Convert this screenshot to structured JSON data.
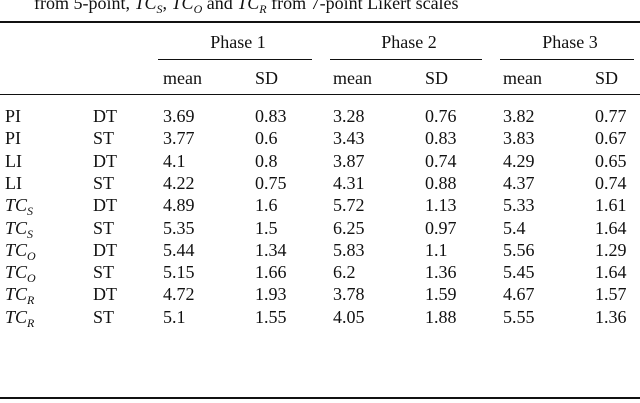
{
  "caption": [
    "from 5-point, ",
    {
      "base": "TC",
      "sub": "S"
    },
    ", ",
    {
      "base": "TC",
      "sub": "O"
    },
    " and ",
    {
      "base": "TC",
      "sub": "R"
    },
    " from 7-point Likert scales"
  ],
  "table": {
    "phases": [
      "Phase 1",
      "Phase 2",
      "Phase 3"
    ],
    "columns": [
      "mean",
      "SD",
      "mean",
      "SD",
      "mean",
      "SD"
    ],
    "rows": [
      {
        "measure": "PI",
        "condition": "DT",
        "values": [
          3.69,
          0.83,
          3.28,
          0.76,
          3.82,
          0.77
        ]
      },
      {
        "measure": "PI",
        "condition": "ST",
        "values": [
          3.77,
          0.6,
          3.43,
          0.83,
          3.83,
          0.67
        ]
      },
      {
        "measure": "LI",
        "condition": "DT",
        "values": [
          4.1,
          0.8,
          3.87,
          0.74,
          4.29,
          0.65
        ]
      },
      {
        "measure": "LI",
        "condition": "ST",
        "values": [
          4.22,
          0.75,
          4.31,
          0.88,
          4.37,
          0.74
        ]
      },
      {
        "measure": {
          "base": "TC",
          "sub": "S"
        },
        "condition": "DT",
        "values": [
          4.89,
          1.6,
          5.72,
          1.13,
          5.33,
          1.61
        ]
      },
      {
        "measure": {
          "base": "TC",
          "sub": "S"
        },
        "condition": "ST",
        "values": [
          5.35,
          1.5,
          6.25,
          0.97,
          5.4,
          1.64
        ]
      },
      {
        "measure": {
          "base": "TC",
          "sub": "O"
        },
        "condition": "DT",
        "values": [
          5.44,
          1.34,
          5.83,
          1.1,
          5.56,
          1.29
        ]
      },
      {
        "measure": {
          "base": "TC",
          "sub": "O"
        },
        "condition": "ST",
        "values": [
          5.15,
          1.66,
          6.2,
          1.36,
          5.45,
          1.64
        ]
      },
      {
        "measure": {
          "base": "TC",
          "sub": "R"
        },
        "condition": "DT",
        "values": [
          4.72,
          1.93,
          3.78,
          1.59,
          4.67,
          1.57
        ]
      },
      {
        "measure": {
          "base": "TC",
          "sub": "R"
        },
        "condition": "ST",
        "values": [
          5.1,
          1.55,
          4.05,
          1.88,
          5.55,
          1.36
        ]
      }
    ]
  }
}
